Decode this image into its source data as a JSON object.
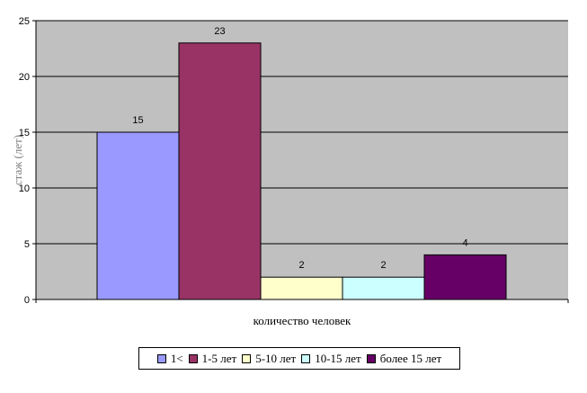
{
  "chart_data": {
    "type": "bar",
    "categories": [
      "1<",
      "1-5 лет",
      "5-10 лет",
      "10-15 лет",
      "более 15 лет"
    ],
    "values": [
      15,
      23,
      2,
      2,
      4
    ],
    "colors": [
      "#9999FF",
      "#993366",
      "#FFFFCC",
      "#CCFFFF",
      "#660066"
    ],
    "xlabel": "количество человек",
    "ylabel": "стаж (лет)",
    "ylim": [
      0,
      25
    ],
    "yticks": [
      0,
      5,
      10,
      15,
      20,
      25
    ],
    "grid": true,
    "plot_background": "#C0C0C0",
    "legend_position": "bottom"
  }
}
